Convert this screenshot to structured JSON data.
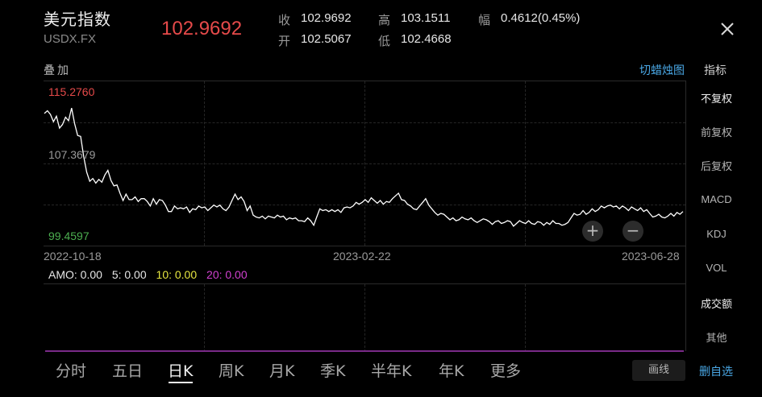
{
  "header": {
    "name": "美元指数",
    "symbol": "USDX.FX",
    "price": "102.9692",
    "quote": [
      {
        "label": "收",
        "value": "102.9692"
      },
      {
        "label": "高",
        "value": "103.1511"
      },
      {
        "label": "幅",
        "value": "0.4612(0.45%)"
      },
      {
        "label": "开",
        "value": "102.5067"
      },
      {
        "label": "低",
        "value": "102.4668"
      }
    ]
  },
  "toolbar": {
    "overlay": "叠加",
    "switch_chart": "切蜡烛图",
    "indicator": "指标"
  },
  "chart": {
    "high_label": "115.2760",
    "mid_label": "107.3679",
    "low_label": "99.4597",
    "dates": [
      "2022-10-18",
      "2023-02-22",
      "2023-06-28"
    ],
    "zoom_in": "+",
    "zoom_out": "−",
    "line_color": "#ffffff"
  },
  "chart_data": {
    "type": "line",
    "ylim": [
      99.4597,
      115.276
    ],
    "y_ticks": [
      "115.2760",
      "107.3679",
      "99.4597"
    ],
    "x_ticks": [
      "2022-10-18",
      "2023-02-22",
      "2023-06-28"
    ],
    "values": [
      113.0,
      113.3,
      112.9,
      112.1,
      112.7,
      111.4,
      111.8,
      112.6,
      112.2,
      113.6,
      111.9,
      110.6,
      110.5,
      108.3,
      106.6,
      105.6,
      105.9,
      105.4,
      105.8,
      105.5,
      106.3,
      106.8,
      105.7,
      105.1,
      105.2,
      104.3,
      103.5,
      104.2,
      103.6,
      103.6,
      103.9,
      103.4,
      103.7,
      103.7,
      103.4,
      102.9,
      103.7,
      103.1,
      103.6,
      103.5,
      103.0,
      102.3,
      102.3,
      102.9,
      102.6,
      102.7,
      102.6,
      102.8,
      102.2,
      102.6,
      102.5,
      102.9,
      102.7,
      102.8,
      102.4,
      102.7,
      103.0,
      102.8,
      103.0,
      102.6,
      102.4,
      102.8,
      103.5,
      104.2,
      103.6,
      103.9,
      103.4,
      102.4,
      102.9,
      101.9,
      101.7,
      101.6,
      101.8,
      101.5,
      101.8,
      101.7,
      101.6,
      101.9,
      101.7,
      101.8,
      101.4,
      101.6,
      101.5,
      101.6,
      101.3,
      101.3,
      101.2,
      101.6,
      101.3,
      100.8,
      101.7,
      102.6,
      102.4,
      102.5,
      102.3,
      102.5,
      102.3,
      102.5,
      102.2,
      102.7,
      102.8,
      102.7,
      102.9,
      103.3,
      103.1,
      103.3,
      103.6,
      103.3,
      103.8,
      103.5,
      103.2,
      103.5,
      103.1,
      103.4,
      103.3,
      103.7,
      104.0,
      104.3,
      103.6,
      103.5,
      103.1,
      102.9,
      102.6,
      102.5,
      102.9,
      103.3,
      103.7,
      103.0,
      102.6,
      102.2,
      101.9,
      102.1,
      102.0,
      101.7,
      101.4,
      101.6,
      101.3,
      101.4,
      101.7,
      101.5,
      101.4,
      101.6,
      101.3,
      101.1,
      101.3,
      101.5,
      101.4,
      101.2,
      100.9,
      101.2,
      101.3,
      101.0,
      101.1,
      101.3,
      101.2,
      100.7,
      101.0,
      101.3,
      101.1,
      101.0,
      101.3,
      101.0,
      100.9,
      101.2,
      101.1,
      100.8,
      101.1,
      100.9,
      101.3,
      101.0,
      101.0,
      100.8,
      100.9,
      101.1,
      101.6,
      102.1,
      101.9,
      102.0,
      102.4,
      102.0,
      102.2,
      102.6,
      102.3,
      102.5,
      102.9,
      102.7,
      102.9,
      103.0,
      102.8,
      102.9,
      102.6,
      102.9,
      102.7,
      102.4,
      102.8,
      102.6,
      102.4,
      102.7,
      102.3,
      102.5,
      102.1,
      101.7,
      101.8,
      102.0,
      101.7,
      101.6,
      101.8,
      102.1,
      101.8,
      102.2,
      102.0,
      102.3
    ]
  },
  "amo": {
    "amo": {
      "text": "AMO: 0.00",
      "color": "#e6e6e6"
    },
    "m5": {
      "text": "5: 0.00",
      "color": "#e6e6e6"
    },
    "m10": {
      "text": "10: 0.00",
      "color": "#e6e640"
    },
    "m20": {
      "text": "20: 0.00",
      "color": "#d040d0"
    }
  },
  "sidebar": {
    "items": [
      "不复权",
      "前复权",
      "后复权",
      "MACD",
      "KDJ",
      "VOL",
      "成交额",
      "其他"
    ]
  },
  "tabs": [
    "分时",
    "五日",
    "日K",
    "周K",
    "月K",
    "季K",
    "半年K",
    "年K",
    "更多"
  ],
  "actions": {
    "draw": "画线",
    "remove_watch": "删自选"
  }
}
